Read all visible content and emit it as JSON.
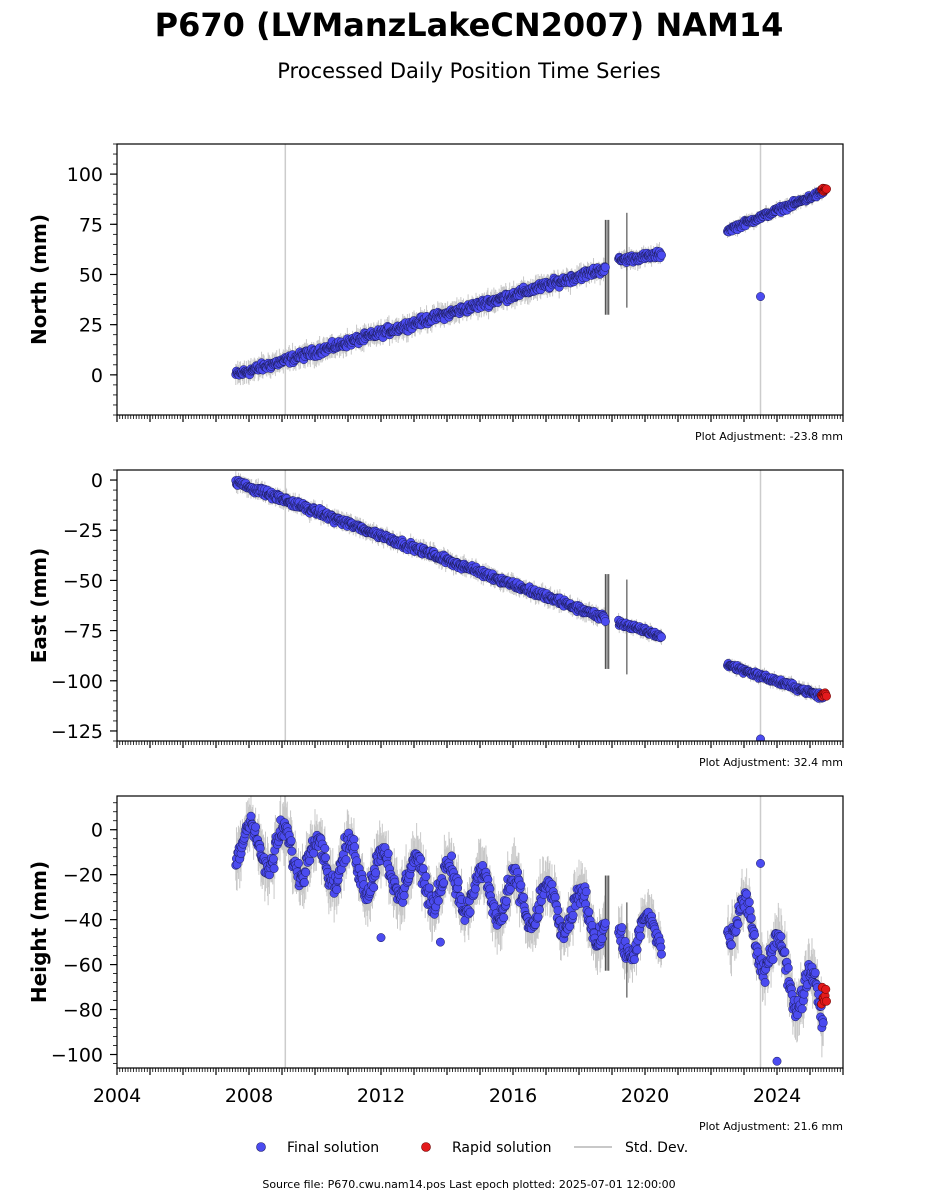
{
  "figure": {
    "title": "P670 (LVManzLakeCN2007) NAM14",
    "subtitle": "Processed Daily Position Time Series",
    "source_line": "Source file: P670.cwu.nam14.pos  Last epoch plotted: 2025-07-01 12:00:00"
  },
  "legend": {
    "final": "Final solution",
    "rapid": "Rapid solution",
    "std": "Std. Dev."
  },
  "colors": {
    "final": "#4b4bf0",
    "rapid": "#e31a1c",
    "std": "#c8c8c8",
    "event_line": "#cccccc"
  },
  "chart_data": [
    {
      "type": "scatter",
      "ylabel": "North (mm)",
      "adjustment": "Plot Adjustment: -23.8 mm",
      "xlim": [
        2004,
        2026
      ],
      "ylim": [
        -20,
        115
      ],
      "yticks": [
        0,
        25,
        50,
        75,
        100
      ],
      "ytick_labels": [
        "0",
        "25",
        "50",
        "75",
        "100"
      ],
      "event_lines": [
        2009.1,
        2023.5
      ],
      "final_segments": [
        {
          "x0": 2007.6,
          "x1": 2018.8,
          "y0": 0,
          "y1": 53,
          "noise": 3
        },
        {
          "x0": 2019.2,
          "x1": 2020.5,
          "y0": 57,
          "y1": 60,
          "noise": 2.5
        },
        {
          "x0": 2022.5,
          "x1": 2025.4,
          "y0": 72,
          "y1": 91,
          "noise": 2
        }
      ],
      "outliers": [
        {
          "x": 2023.5,
          "y": 39
        }
      ],
      "rapid": {
        "x0": 2025.35,
        "x1": 2025.5,
        "y0": 91,
        "y1": 93
      }
    },
    {
      "type": "scatter",
      "ylabel": "East (mm)",
      "adjustment": "Plot Adjustment: 32.4 mm",
      "xlim": [
        2004,
        2026
      ],
      "ylim": [
        -130,
        5
      ],
      "yticks": [
        -125,
        -100,
        -75,
        -50,
        -25,
        0
      ],
      "ytick_labels": [
        "−125",
        "−100",
        "−75",
        "−50",
        "−25",
        "0"
      ],
      "event_lines": [
        2009.1,
        2023.5
      ],
      "final_segments": [
        {
          "x0": 2007.6,
          "x1": 2018.8,
          "y0": -1,
          "y1": -69,
          "noise": 2.5
        },
        {
          "x0": 2019.2,
          "x1": 2020.5,
          "y0": -71,
          "y1": -78,
          "noise": 2
        },
        {
          "x0": 2022.5,
          "x1": 2025.4,
          "y0": -92,
          "y1": -108,
          "noise": 2
        }
      ],
      "outliers": [
        {
          "x": 2023.5,
          "y": -129
        }
      ],
      "rapid": {
        "x0": 2025.35,
        "x1": 2025.5,
        "y0": -108,
        "y1": -106
      }
    },
    {
      "type": "scatter",
      "ylabel": "Height (mm)",
      "adjustment": "Plot Adjustment: 21.6 mm",
      "xlim": [
        2004,
        2026
      ],
      "ylim": [
        -106,
        15
      ],
      "yticks": [
        -100,
        -80,
        -60,
        -40,
        -20,
        0
      ],
      "ytick_labels": [
        "−100",
        "−80",
        "−60",
        "−40",
        "−20",
        "0"
      ],
      "event_lines": [
        2009.1,
        2023.5
      ],
      "final_segments": [
        {
          "x0": 2007.6,
          "x1": 2018.8,
          "y0": -5,
          "y1": -40,
          "noise": 7,
          "seasonal": 10
        },
        {
          "x0": 2019.2,
          "x1": 2020.5,
          "y0": -50,
          "y1": -45,
          "noise": 6,
          "seasonal": 8
        },
        {
          "x0": 2022.5,
          "x1": 2025.4,
          "y0": -35,
          "y1": -80,
          "noise": 7,
          "seasonal": 12
        }
      ],
      "outliers": [
        {
          "x": 2023.5,
          "y": -15
        },
        {
          "x": 2024.0,
          "y": -103
        },
        {
          "x": 2012.0,
          "y": -48
        },
        {
          "x": 2013.8,
          "y": -50
        }
      ],
      "rapid": {
        "x0": 2025.35,
        "x1": 2025.5,
        "y0": -78,
        "y1": -70
      }
    }
  ],
  "xaxis": {
    "ticks": [
      2004,
      2008,
      2012,
      2016,
      2020,
      2024
    ],
    "tick_labels": [
      "2004",
      "2008",
      "2012",
      "2016",
      "2020",
      "2024"
    ]
  }
}
